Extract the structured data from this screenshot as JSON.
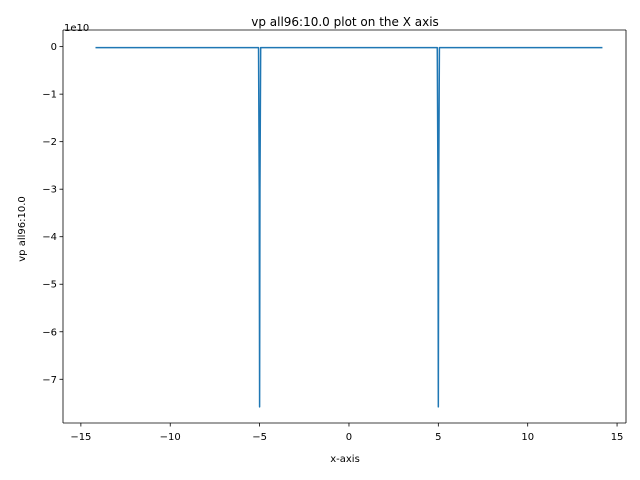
{
  "chart_data": {
    "type": "line",
    "title": "vp all96:10.0 plot on the X axis",
    "xlabel": "x-axis",
    "ylabel": "vp all96:10.0",
    "offset_label": "1e10",
    "xlim": [
      -16.0,
      15.5
    ],
    "ylim": [
      -7.92,
      0.35
    ],
    "xticks": [
      -15,
      -10,
      -5,
      0,
      5,
      10,
      15
    ],
    "xtick_labels": [
      "−15",
      "−10",
      "−5",
      "0",
      "5",
      "10",
      "15"
    ],
    "yticks": [
      0,
      -1,
      -2,
      -3,
      -4,
      -5,
      -6,
      -7
    ],
    "ytick_labels": [
      "0",
      "−1",
      "−2",
      "−3",
      "−4",
      "−5",
      "−6",
      "−7"
    ],
    "y_scale_factor": 10000000000,
    "grid": false,
    "series": [
      {
        "color": "#1f77b4",
        "x": [
          -14.14,
          -5.06,
          -5.02,
          -5.0,
          -4.98,
          -4.94,
          4.94,
          4.98,
          5.0,
          5.02,
          5.06,
          14.14
        ],
        "y": [
          -0.02,
          -0.02,
          -3.0,
          -7.58,
          -3.0,
          -0.02,
          -0.02,
          -3.0,
          -7.58,
          -3.0,
          -0.02,
          -0.02
        ]
      }
    ]
  }
}
